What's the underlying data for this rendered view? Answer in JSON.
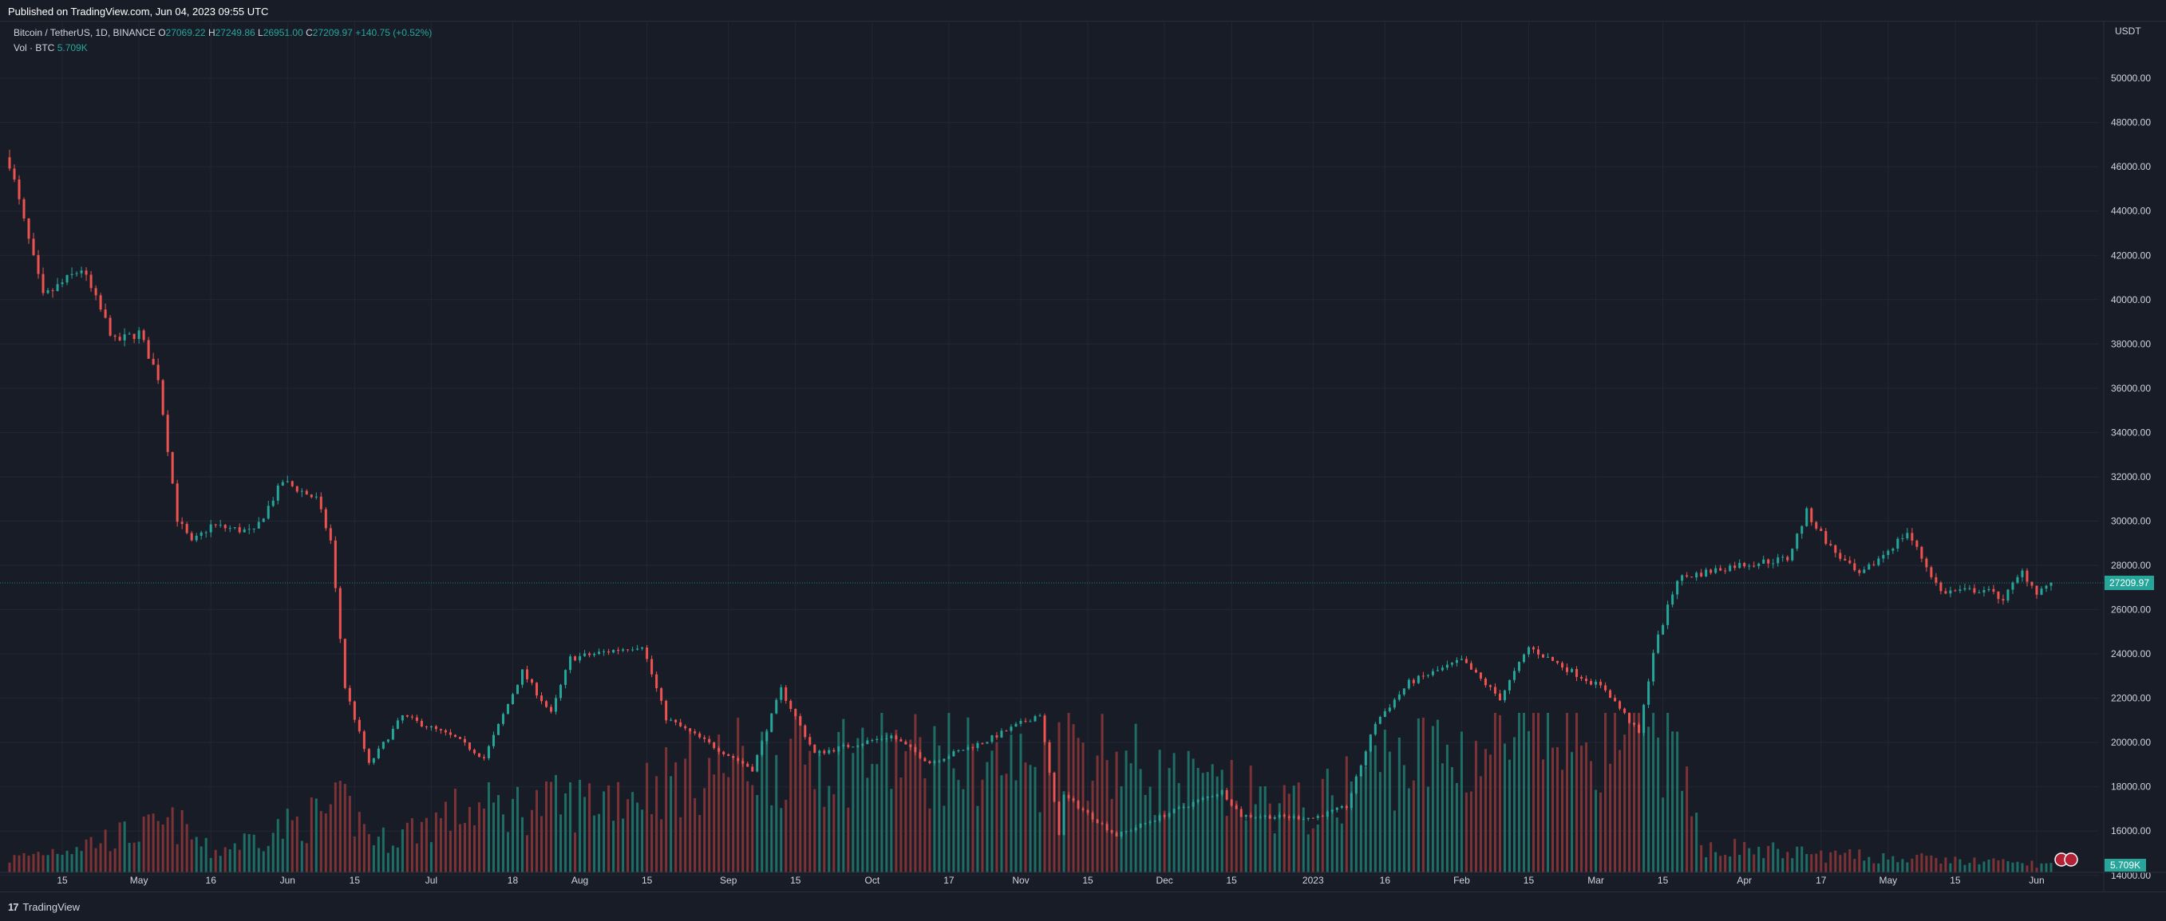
{
  "header": {
    "published": "Published on TradingView.com, Jun 04, 2023 09:55 UTC"
  },
  "legend": {
    "symbol": "Bitcoin / TetherUS, 1D, BINANCE",
    "o_label": "O",
    "o_value": "27069.22",
    "h_label": "H",
    "h_value": "27249.86",
    "l_label": "L",
    "l_value": "26951.00",
    "c_label": "C",
    "c_value": "27209.97",
    "change": "+140.75 (+0.52%)",
    "vol_label": "Vol · BTC",
    "vol_value": "5.709K"
  },
  "footer": {
    "brand": "TradingView",
    "logo": "17"
  },
  "colors": {
    "background": "#181c27",
    "grid": "#232734",
    "text": "#d1d4dc",
    "up": "#26a69a",
    "down": "#ef5350",
    "vol_up": "#1f6e66",
    "vol_down": "#7d3336"
  },
  "chart_data": {
    "type": "candlestick",
    "symbol": "Bitcoin / TetherUS",
    "interval": "1D",
    "exchange": "BINANCE",
    "y_unit": "USDT",
    "ylim": [
      13200,
      51300
    ],
    "yticks": [
      "50000.00",
      "48000.00",
      "46000.00",
      "44000.00",
      "42000.00",
      "40000.00",
      "38000.00",
      "36000.00",
      "34000.00",
      "32000.00",
      "30000.00",
      "28000.00",
      "26000.00",
      "24000.00",
      "22000.00",
      "20000.00",
      "18000.00",
      "16000.00",
      "14000.00"
    ],
    "x_range": [
      "2022-04-04",
      "2023-06-05"
    ],
    "xticks": [
      {
        "date": "2022-04-15",
        "label": "15"
      },
      {
        "date": "2022-05-01",
        "label": "May"
      },
      {
        "date": "2022-05-16",
        "label": "16"
      },
      {
        "date": "2022-06-01",
        "label": "Jun"
      },
      {
        "date": "2022-06-15",
        "label": "15"
      },
      {
        "date": "2022-07-01",
        "label": "Jul"
      },
      {
        "date": "2022-07-18",
        "label": "18"
      },
      {
        "date": "2022-08-01",
        "label": "Aug"
      },
      {
        "date": "2022-08-15",
        "label": "15"
      },
      {
        "date": "2022-09-01",
        "label": "Sep"
      },
      {
        "date": "2022-09-15",
        "label": "15"
      },
      {
        "date": "2022-10-01",
        "label": "Oct"
      },
      {
        "date": "2022-10-17",
        "label": "17"
      },
      {
        "date": "2022-11-01",
        "label": "Nov"
      },
      {
        "date": "2022-11-15",
        "label": "15"
      },
      {
        "date": "2022-12-01",
        "label": "Dec"
      },
      {
        "date": "2022-12-15",
        "label": "15"
      },
      {
        "date": "2023-01-01",
        "label": "2023"
      },
      {
        "date": "2023-01-16",
        "label": "16"
      },
      {
        "date": "2023-02-01",
        "label": "Feb"
      },
      {
        "date": "2023-02-15",
        "label": "15"
      },
      {
        "date": "2023-03-01",
        "label": "Mar"
      },
      {
        "date": "2023-03-15",
        "label": "15"
      },
      {
        "date": "2023-04-01",
        "label": "Apr"
      },
      {
        "date": "2023-04-17",
        "label": "17"
      },
      {
        "date": "2023-05-01",
        "label": "May"
      },
      {
        "date": "2023-05-15",
        "label": "15"
      },
      {
        "date": "2023-06-01",
        "label": "Jun"
      }
    ],
    "price_anchors": [
      {
        "date": "2022-04-04",
        "close": 46200
      },
      {
        "date": "2022-04-07",
        "close": 43500
      },
      {
        "date": "2022-04-11",
        "close": 40100
      },
      {
        "date": "2022-04-19",
        "close": 41400
      },
      {
        "date": "2022-04-26",
        "close": 38100
      },
      {
        "date": "2022-05-01",
        "close": 38500
      },
      {
        "date": "2022-05-05",
        "close": 36500
      },
      {
        "date": "2022-05-09",
        "close": 30100
      },
      {
        "date": "2022-05-12",
        "close": 29000
      },
      {
        "date": "2022-05-16",
        "close": 29800
      },
      {
        "date": "2022-05-25",
        "close": 29500
      },
      {
        "date": "2022-05-31",
        "close": 31800
      },
      {
        "date": "2022-06-07",
        "close": 31000
      },
      {
        "date": "2022-06-10",
        "close": 29100
      },
      {
        "date": "2022-06-13",
        "close": 22500
      },
      {
        "date": "2022-06-18",
        "close": 19000
      },
      {
        "date": "2022-06-25",
        "close": 21200
      },
      {
        "date": "2022-07-06",
        "close": 20200
      },
      {
        "date": "2022-07-12",
        "close": 19300
      },
      {
        "date": "2022-07-20",
        "close": 23200
      },
      {
        "date": "2022-07-26",
        "close": 21300
      },
      {
        "date": "2022-07-30",
        "close": 23800
      },
      {
        "date": "2022-08-14",
        "close": 24400
      },
      {
        "date": "2022-08-19",
        "close": 21100
      },
      {
        "date": "2022-08-26",
        "close": 20200
      },
      {
        "date": "2022-09-06",
        "close": 18800
      },
      {
        "date": "2022-09-12",
        "close": 22400
      },
      {
        "date": "2022-09-19",
        "close": 19500
      },
      {
        "date": "2022-10-05",
        "close": 20300
      },
      {
        "date": "2022-10-13",
        "close": 19100
      },
      {
        "date": "2022-10-25",
        "close": 20100
      },
      {
        "date": "2022-11-05",
        "close": 21300
      },
      {
        "date": "2022-11-09",
        "close": 15900
      },
      {
        "date": "2022-11-10",
        "close": 17600
      },
      {
        "date": "2022-11-21",
        "close": 15800
      },
      {
        "date": "2022-12-05",
        "close": 17100
      },
      {
        "date": "2022-12-13",
        "close": 17800
      },
      {
        "date": "2022-12-17",
        "close": 16700
      },
      {
        "date": "2023-01-01",
        "close": 16600
      },
      {
        "date": "2023-01-08",
        "close": 17100
      },
      {
        "date": "2023-01-14",
        "close": 20900
      },
      {
        "date": "2023-01-21",
        "close": 22700
      },
      {
        "date": "2023-02-01",
        "close": 23700
      },
      {
        "date": "2023-02-09",
        "close": 22000
      },
      {
        "date": "2023-02-15",
        "close": 24300
      },
      {
        "date": "2023-02-24",
        "close": 23200
      },
      {
        "date": "2023-03-03",
        "close": 22400
      },
      {
        "date": "2023-03-10",
        "close": 20400
      },
      {
        "date": "2023-03-13",
        "close": 24100
      },
      {
        "date": "2023-03-18",
        "close": 27400
      },
      {
        "date": "2023-03-30",
        "close": 28000
      },
      {
        "date": "2023-04-10",
        "close": 28300
      },
      {
        "date": "2023-04-14",
        "close": 30400
      },
      {
        "date": "2023-04-19",
        "close": 28800
      },
      {
        "date": "2023-04-25",
        "close": 27500
      },
      {
        "date": "2023-05-05",
        "close": 29500
      },
      {
        "date": "2023-05-12",
        "close": 26800
      },
      {
        "date": "2023-05-21",
        "close": 26900
      },
      {
        "date": "2023-05-25",
        "close": 26500
      },
      {
        "date": "2023-05-29",
        "close": 27700
      },
      {
        "date": "2023-06-01",
        "close": 26800
      },
      {
        "date": "2023-06-04",
        "close": 27210
      }
    ],
    "volume_anchors_k": [
      {
        "date": "2022-04-04",
        "vol": 30
      },
      {
        "date": "2022-05-09",
        "vol": 110
      },
      {
        "date": "2022-05-16",
        "vol": 45
      },
      {
        "date": "2022-06-13",
        "vol": 150
      },
      {
        "date": "2022-06-20",
        "vol": 70
      },
      {
        "date": "2022-07-07",
        "vol": 140
      },
      {
        "date": "2022-08-01",
        "vol": 160
      },
      {
        "date": "2022-09-06",
        "vol": 260
      },
      {
        "date": "2022-10-01",
        "vol": 270
      },
      {
        "date": "2022-11-05",
        "vol": 240
      },
      {
        "date": "2022-11-09",
        "vol": 320
      },
      {
        "date": "2022-12-01",
        "vol": 210
      },
      {
        "date": "2023-01-01",
        "vol": 140
      },
      {
        "date": "2023-01-14",
        "vol": 250
      },
      {
        "date": "2023-02-15",
        "vol": 290
      },
      {
        "date": "2023-03-13",
        "vol": 360
      },
      {
        "date": "2023-03-24",
        "vol": 60
      },
      {
        "date": "2023-04-17",
        "vol": 40
      },
      {
        "date": "2023-06-04",
        "vol": 18
      }
    ],
    "last_price": 27209.97,
    "last_price_label": "27209.97",
    "last_volume_label": "5.709K",
    "grid": true,
    "legend_position": "top-left"
  }
}
